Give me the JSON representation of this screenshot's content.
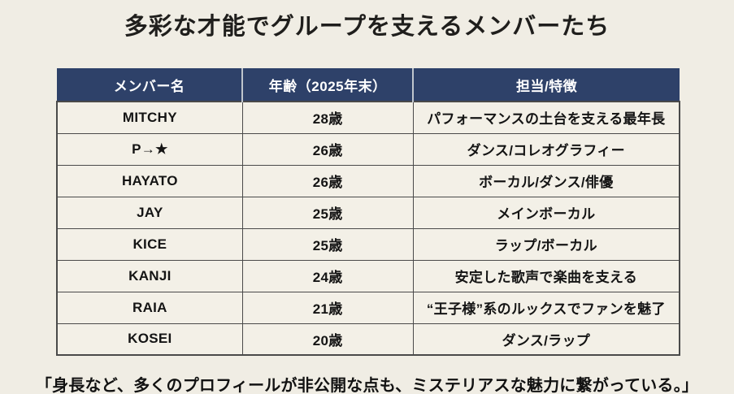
{
  "title": "多彩な才能でグループを支えるメンバーたち",
  "table": {
    "headers": [
      "メンバー名",
      "年齢（2025年末）",
      "担当/特徴"
    ],
    "rows": [
      {
        "name": "MITCHY",
        "age": "28歳",
        "role": "パフォーマンスの土台を支える最年長"
      },
      {
        "name": "P→★",
        "age": "26歳",
        "role": "ダンス/コレオグラフィー"
      },
      {
        "name": "HAYATO",
        "age": "26歳",
        "role": "ボーカル/ダンス/俳優"
      },
      {
        "name": "JAY",
        "age": "25歳",
        "role": "メインボーカル"
      },
      {
        "name": "KICE",
        "age": "25歳",
        "role": "ラップ/ボーカル"
      },
      {
        "name": "KANJI",
        "age": "24歳",
        "role": "安定した歌声で楽曲を支える"
      },
      {
        "name": "RAIA",
        "age": "21歳",
        "role": "“王子様”系のルックスでファンを魅了"
      },
      {
        "name": "KOSEI",
        "age": "20歳",
        "role": "ダンス/ラップ"
      }
    ]
  },
  "footer_quote": "「身長など、多くのプロフィールが非公開な点も、ミステリアスな魅力に繋がっている。」",
  "colors": {
    "page_bg": "#f0ede4",
    "cell_bg": "#f3f0e7",
    "header_bg": "#2e4169",
    "header_text": "#ffffff",
    "border": "#4a4a4a",
    "header_divider": "#bfc5cd"
  }
}
